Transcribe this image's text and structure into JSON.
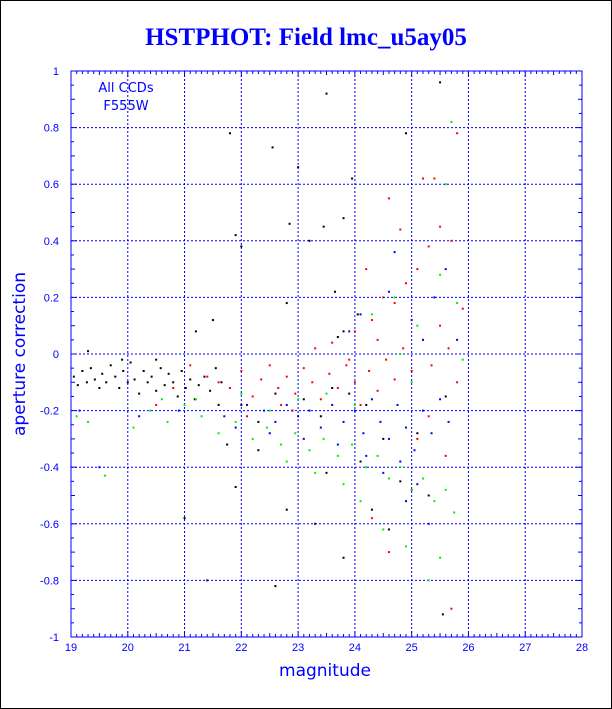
{
  "chart_data": {
    "type": "scatter",
    "title": "HSTPHOT: Field lmc_u5ay05",
    "xlabel": "magnitude",
    "ylabel": "aperture correction",
    "xlim": [
      19,
      28
    ],
    "ylim": [
      -1,
      1
    ],
    "x_ticks": [
      "19",
      "20",
      "21",
      "22",
      "23",
      "24",
      "25",
      "26",
      "27",
      "28"
    ],
    "y_ticks": [
      "-1",
      "-0.8",
      "-0.6",
      "-0.4",
      "-0.2",
      "0",
      "0.2",
      "0.4",
      "0.6",
      "0.8",
      "1"
    ],
    "grid": true,
    "annotations": [
      "All CCDs",
      "F555W"
    ],
    "colors": {
      "axis": "#0000ff",
      "grid": "#0000ff",
      "title": "#0000ff"
    },
    "series": [
      {
        "color": "#000000",
        "points": [
          [
            19.05,
            -0.08
          ],
          [
            19.12,
            -0.11
          ],
          [
            19.2,
            -0.06
          ],
          [
            19.28,
            -0.1
          ],
          [
            19.35,
            -0.05
          ],
          [
            19.42,
            -0.09
          ],
          [
            19.5,
            -0.12
          ],
          [
            19.55,
            -0.07
          ],
          [
            19.62,
            -0.1
          ],
          [
            19.7,
            -0.04
          ],
          [
            19.78,
            -0.08
          ],
          [
            19.85,
            -0.12
          ],
          [
            19.92,
            -0.06
          ],
          [
            20.0,
            -0.1
          ],
          [
            20.05,
            -0.03
          ],
          [
            20.12,
            -0.09
          ],
          [
            20.2,
            -0.14
          ],
          [
            20.28,
            -0.06
          ],
          [
            20.35,
            -0.1
          ],
          [
            20.42,
            -0.08
          ],
          [
            20.5,
            -0.13
          ],
          [
            20.58,
            -0.05
          ],
          [
            20.65,
            -0.11
          ],
          [
            20.72,
            -0.07
          ],
          [
            20.8,
            -0.1
          ],
          [
            20.88,
            -0.15
          ],
          [
            20.95,
            -0.06
          ],
          [
            21.02,
            -0.12
          ],
          [
            21.1,
            -0.09
          ],
          [
            21.18,
            -0.16
          ],
          [
            21.25,
            -0.11
          ],
          [
            21.35,
            -0.08
          ],
          [
            21.45,
            -0.13
          ],
          [
            21.55,
            -0.05
          ],
          [
            21.65,
            -0.1
          ],
          [
            21.8,
            0.78
          ],
          [
            21.9,
            0.42
          ],
          [
            22.0,
            0.38
          ],
          [
            22.55,
            0.73
          ],
          [
            22.8,
            0.18
          ],
          [
            22.85,
            0.46
          ],
          [
            23.0,
            0.66
          ],
          [
            23.2,
            0.4
          ],
          [
            23.45,
            0.45
          ],
          [
            23.5,
            0.92
          ],
          [
            23.65,
            0.22
          ],
          [
            23.8,
            0.48
          ],
          [
            23.95,
            0.62
          ],
          [
            23.8,
            0.08
          ],
          [
            23.7,
            0.06
          ],
          [
            24.05,
            0.14
          ],
          [
            21.5,
            0.12
          ],
          [
            21.2,
            0.08
          ],
          [
            21.0,
            -0.58
          ],
          [
            21.4,
            -0.8
          ],
          [
            21.6,
            -0.18
          ],
          [
            21.9,
            -0.47
          ],
          [
            22.3,
            -0.34
          ],
          [
            22.6,
            -0.82
          ],
          [
            22.8,
            -0.55
          ],
          [
            23.3,
            -0.6
          ],
          [
            23.5,
            -0.42
          ],
          [
            23.8,
            -0.72
          ],
          [
            24.1,
            -0.38
          ],
          [
            24.3,
            -0.55
          ],
          [
            24.6,
            -0.62
          ],
          [
            24.8,
            -0.45
          ],
          [
            25.1,
            -0.28
          ],
          [
            25.3,
            -0.5
          ],
          [
            25.55,
            -0.92
          ],
          [
            25.6,
            -0.15
          ],
          [
            24.5,
            -0.3
          ],
          [
            24.2,
            -0.18
          ],
          [
            23.9,
            -0.14
          ],
          [
            23.6,
            -0.12
          ],
          [
            23.4,
            -0.22
          ],
          [
            23.1,
            -0.16
          ],
          [
            22.9,
            -0.2
          ],
          [
            22.6,
            -0.14
          ],
          [
            22.3,
            -0.24
          ],
          [
            22.0,
            -0.18
          ],
          [
            21.75,
            -0.32
          ],
          [
            24.9,
            0.78
          ],
          [
            25.5,
            0.96
          ],
          [
            19.9,
            -0.02
          ],
          [
            19.3,
            0.01
          ],
          [
            20.5,
            -0.02
          ]
        ]
      },
      {
        "color": "#ff0000",
        "points": [
          [
            20.5,
            -0.18
          ],
          [
            20.8,
            -0.12
          ],
          [
            21.1,
            -0.04
          ],
          [
            21.4,
            -0.08
          ],
          [
            21.8,
            -0.12
          ],
          [
            22.0,
            -0.06
          ],
          [
            22.2,
            -0.15
          ],
          [
            22.35,
            -0.09
          ],
          [
            22.5,
            -0.04
          ],
          [
            22.65,
            -0.12
          ],
          [
            22.8,
            -0.08
          ],
          [
            22.95,
            -0.14
          ],
          [
            23.1,
            -0.05
          ],
          [
            23.25,
            -0.1
          ],
          [
            23.4,
            -0.16
          ],
          [
            23.55,
            -0.07
          ],
          [
            23.7,
            -0.12
          ],
          [
            23.85,
            -0.04
          ],
          [
            24.0,
            -0.1
          ],
          [
            24.1,
            -0.18
          ],
          [
            24.25,
            -0.06
          ],
          [
            24.4,
            -0.13
          ],
          [
            24.55,
            -0.02
          ],
          [
            24.7,
            -0.09
          ],
          [
            24.85,
            0.02
          ],
          [
            25.0,
            -0.06
          ],
          [
            25.2,
            0.05
          ],
          [
            25.35,
            -0.04
          ],
          [
            25.5,
            0.1
          ],
          [
            25.65,
            0.02
          ],
          [
            24.3,
            0.12
          ],
          [
            24.5,
            0.2
          ],
          [
            24.7,
            0.18
          ],
          [
            24.9,
            0.25
          ],
          [
            25.1,
            0.3
          ],
          [
            25.3,
            0.38
          ],
          [
            25.5,
            0.45
          ],
          [
            25.7,
            0.4
          ],
          [
            25.4,
            0.62
          ],
          [
            25.8,
            0.78
          ],
          [
            24.6,
            0.55
          ],
          [
            24.2,
            0.3
          ],
          [
            24.0,
            0.08
          ],
          [
            23.9,
            -0.02
          ],
          [
            23.6,
            0.04
          ],
          [
            22.9,
            -0.2
          ],
          [
            22.1,
            -0.22
          ],
          [
            21.6,
            -0.1
          ],
          [
            25.1,
            -0.3
          ],
          [
            25.3,
            -0.22
          ],
          [
            25.6,
            -0.36
          ],
          [
            25.7,
            -0.9
          ],
          [
            25.0,
            -0.48
          ],
          [
            24.6,
            -0.7
          ],
          [
            24.3,
            -0.58
          ],
          [
            25.8,
            -0.1
          ],
          [
            25.9,
            0.16
          ],
          [
            25.2,
            0.62
          ],
          [
            24.8,
            0.44
          ],
          [
            24.4,
            0.05
          ],
          [
            23.3,
            0.02
          ],
          [
            22.7,
            -0.18
          ]
        ]
      },
      {
        "color": "#0000ff",
        "points": [
          [
            19.15,
            -0.2
          ],
          [
            19.5,
            -0.4
          ],
          [
            20.2,
            -0.22
          ],
          [
            20.9,
            -0.2
          ],
          [
            21.7,
            -0.22
          ],
          [
            22.1,
            -0.18
          ],
          [
            22.4,
            -0.2
          ],
          [
            22.6,
            -0.24
          ],
          [
            22.8,
            -0.18
          ],
          [
            23.0,
            -0.22
          ],
          [
            23.2,
            -0.2
          ],
          [
            23.4,
            -0.26
          ],
          [
            23.6,
            -0.18
          ],
          [
            23.8,
            -0.24
          ],
          [
            24.0,
            -0.2
          ],
          [
            24.15,
            -0.28
          ],
          [
            24.3,
            -0.16
          ],
          [
            24.45,
            -0.24
          ],
          [
            24.6,
            -0.3
          ],
          [
            24.75,
            -0.18
          ],
          [
            24.9,
            -0.26
          ],
          [
            25.05,
            -0.34
          ],
          [
            25.2,
            -0.2
          ],
          [
            25.35,
            -0.28
          ],
          [
            25.5,
            -0.16
          ],
          [
            25.65,
            -0.24
          ],
          [
            24.2,
            -0.36
          ],
          [
            24.5,
            -0.42
          ],
          [
            24.8,
            -0.38
          ],
          [
            25.1,
            -0.46
          ],
          [
            23.9,
            0.08
          ],
          [
            24.1,
            0.14
          ],
          [
            24.6,
            0.22
          ],
          [
            25.0,
            0.12
          ],
          [
            25.4,
            0.2
          ],
          [
            25.6,
            0.3
          ],
          [
            25.8,
            0.05
          ],
          [
            25.3,
            -0.6
          ],
          [
            24.9,
            -0.52
          ],
          [
            23.7,
            -0.32
          ],
          [
            23.1,
            -0.3
          ],
          [
            22.5,
            -0.28
          ],
          [
            21.9,
            -0.26
          ],
          [
            24.7,
            0.36
          ],
          [
            25.2,
            0.05
          ]
        ]
      },
      {
        "color": "#00ee00",
        "points": [
          [
            19.1,
            -0.22
          ],
          [
            19.3,
            -0.24
          ],
          [
            19.6,
            -0.43
          ],
          [
            20.1,
            -0.26
          ],
          [
            20.4,
            -0.2
          ],
          [
            20.7,
            -0.24
          ],
          [
            21.0,
            -0.18
          ],
          [
            21.3,
            -0.22
          ],
          [
            21.6,
            -0.28
          ],
          [
            21.9,
            -0.24
          ],
          [
            22.2,
            -0.3
          ],
          [
            22.45,
            -0.26
          ],
          [
            22.7,
            -0.32
          ],
          [
            22.95,
            -0.28
          ],
          [
            23.2,
            -0.34
          ],
          [
            23.45,
            -0.3
          ],
          [
            23.7,
            -0.36
          ],
          [
            23.95,
            -0.32
          ],
          [
            24.2,
            -0.4
          ],
          [
            24.4,
            -0.36
          ],
          [
            24.6,
            -0.44
          ],
          [
            24.8,
            -0.4
          ],
          [
            25.0,
            -0.48
          ],
          [
            25.2,
            -0.44
          ],
          [
            25.4,
            -0.52
          ],
          [
            25.6,
            -0.48
          ],
          [
            25.75,
            -0.56
          ],
          [
            24.0,
            -0.18
          ],
          [
            23.5,
            -0.14
          ],
          [
            23.0,
            -0.16
          ],
          [
            22.5,
            -0.2
          ],
          [
            22.0,
            -0.14
          ],
          [
            24.3,
            0.14
          ],
          [
            24.7,
            0.2
          ],
          [
            25.1,
            0.1
          ],
          [
            25.5,
            0.28
          ],
          [
            25.7,
            0.82
          ],
          [
            25.6,
            0.6
          ],
          [
            24.5,
            -0.62
          ],
          [
            24.9,
            -0.68
          ],
          [
            25.3,
            -0.8
          ],
          [
            25.5,
            -0.72
          ],
          [
            24.1,
            -0.52
          ],
          [
            23.8,
            -0.46
          ],
          [
            23.3,
            -0.42
          ],
          [
            22.8,
            -0.38
          ],
          [
            21.2,
            -0.16
          ],
          [
            20.6,
            -0.16
          ],
          [
            25.8,
            0.18
          ],
          [
            25.9,
            -0.02
          ],
          [
            24.8,
            0.0
          ],
          [
            25.0,
            -0.1
          ]
        ]
      }
    ]
  }
}
